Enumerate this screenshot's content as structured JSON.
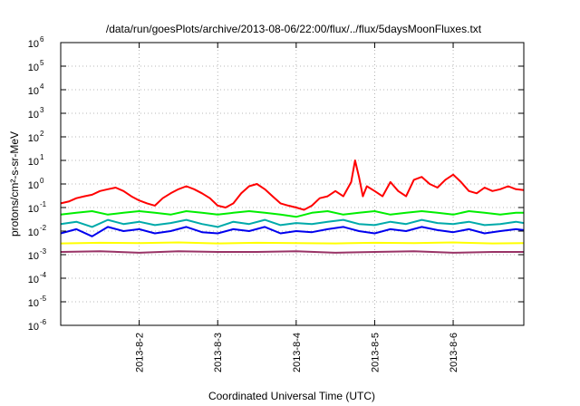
{
  "chart_data": {
    "type": "line",
    "title": "/data/run/goesPlots/archive/2013-08-06/22:00/flux/../flux/5daysMoonFluxes.txt",
    "xlabel": "Coordinated Universal Time (UTC)",
    "ylabel": "protons/cm²-s-sr-MeV",
    "yscale": "log",
    "ylim": [
      1e-06,
      1000000.0
    ],
    "xlim": [
      0,
      5.9
    ],
    "grid": true,
    "legend": false,
    "x_ticks": [
      {
        "value": 1,
        "label": "2013-8-2"
      },
      {
        "value": 2,
        "label": "2013-8-3"
      },
      {
        "value": 3,
        "label": "2013-8-4"
      },
      {
        "value": 4,
        "label": "2013-8-5"
      },
      {
        "value": 5,
        "label": "2013-8-6"
      }
    ],
    "y_ticks": [
      {
        "value": -6,
        "base": "10",
        "exp": "-6"
      },
      {
        "value": -5,
        "base": "10",
        "exp": "-5"
      },
      {
        "value": -4,
        "base": "10",
        "exp": "-4"
      },
      {
        "value": -3,
        "base": "10",
        "exp": "-3"
      },
      {
        "value": -2,
        "base": "10",
        "exp": "-2"
      },
      {
        "value": -1,
        "base": "10",
        "exp": "-1"
      },
      {
        "value": 0,
        "base": "10",
        "exp": "0"
      },
      {
        "value": 1,
        "base": "10",
        "exp": "1"
      },
      {
        "value": 2,
        "base": "10",
        "exp": "2"
      },
      {
        "value": 3,
        "base": "10",
        "exp": "3"
      },
      {
        "value": 4,
        "base": "10",
        "exp": "4"
      },
      {
        "value": 5,
        "base": "10",
        "exp": "5"
      },
      {
        "value": 6,
        "base": "10",
        "exp": "6"
      }
    ],
    "series": [
      {
        "color": "#ff0000",
        "x": [
          0,
          0.1,
          0.2,
          0.3,
          0.4,
          0.5,
          0.6,
          0.7,
          0.8,
          0.9,
          1.0,
          1.1,
          1.2,
          1.3,
          1.4,
          1.5,
          1.6,
          1.7,
          1.8,
          1.9,
          2.0,
          2.1,
          2.2,
          2.3,
          2.4,
          2.5,
          2.6,
          2.7,
          2.8,
          2.9,
          3.0,
          3.1,
          3.2,
          3.3,
          3.4,
          3.5,
          3.6,
          3.7,
          3.75,
          3.8,
          3.85,
          3.9,
          4.0,
          4.1,
          4.2,
          4.3,
          4.4,
          4.5,
          4.6,
          4.7,
          4.8,
          4.9,
          5.0,
          5.1,
          5.2,
          5.3,
          5.4,
          5.5,
          5.6,
          5.7,
          5.8,
          5.9
        ],
        "y": [
          0.15,
          0.18,
          0.25,
          0.3,
          0.35,
          0.5,
          0.6,
          0.7,
          0.5,
          0.3,
          0.2,
          0.15,
          0.12,
          0.25,
          0.4,
          0.6,
          0.8,
          0.6,
          0.4,
          0.25,
          0.12,
          0.1,
          0.15,
          0.4,
          0.8,
          1.0,
          0.6,
          0.3,
          0.15,
          0.12,
          0.1,
          0.08,
          0.12,
          0.25,
          0.3,
          0.5,
          0.3,
          1.2,
          10,
          2.0,
          0.3,
          0.8,
          0.5,
          0.3,
          1.2,
          0.5,
          0.3,
          1.5,
          2.0,
          1.0,
          0.7,
          1.5,
          2.5,
          1.2,
          0.5,
          0.4,
          0.7,
          0.5,
          0.6,
          0.8,
          0.6,
          0.55
        ]
      },
      {
        "color": "#00ee00",
        "x": [
          0,
          0.2,
          0.4,
          0.6,
          0.8,
          1.0,
          1.2,
          1.4,
          1.6,
          1.8,
          2.0,
          2.2,
          2.4,
          2.6,
          2.8,
          3.0,
          3.2,
          3.4,
          3.6,
          3.8,
          4.0,
          4.2,
          4.4,
          4.6,
          4.8,
          5.0,
          5.2,
          5.4,
          5.6,
          5.8,
          5.9
        ],
        "y": [
          0.05,
          0.06,
          0.07,
          0.05,
          0.06,
          0.07,
          0.06,
          0.05,
          0.07,
          0.06,
          0.05,
          0.06,
          0.07,
          0.06,
          0.05,
          0.04,
          0.06,
          0.07,
          0.05,
          0.06,
          0.07,
          0.05,
          0.06,
          0.07,
          0.06,
          0.05,
          0.07,
          0.06,
          0.05,
          0.06,
          0.06
        ]
      },
      {
        "color": "#00aaaa",
        "x": [
          0,
          0.2,
          0.4,
          0.6,
          0.8,
          1.0,
          1.2,
          1.4,
          1.6,
          1.8,
          2.0,
          2.2,
          2.4,
          2.6,
          2.8,
          3.0,
          3.2,
          3.4,
          3.6,
          3.8,
          4.0,
          4.2,
          4.4,
          4.6,
          4.8,
          5.0,
          5.2,
          5.4,
          5.6,
          5.8,
          5.9
        ],
        "y": [
          0.02,
          0.025,
          0.015,
          0.03,
          0.02,
          0.025,
          0.018,
          0.022,
          0.03,
          0.02,
          0.015,
          0.025,
          0.02,
          0.03,
          0.018,
          0.022,
          0.02,
          0.025,
          0.03,
          0.02,
          0.018,
          0.025,
          0.02,
          0.03,
          0.022,
          0.02,
          0.025,
          0.018,
          0.02,
          0.025,
          0.022
        ]
      },
      {
        "color": "#0000ee",
        "x": [
          0,
          0.2,
          0.4,
          0.6,
          0.8,
          1.0,
          1.2,
          1.4,
          1.6,
          1.8,
          2.0,
          2.2,
          2.4,
          2.6,
          2.8,
          3.0,
          3.2,
          3.4,
          3.6,
          3.8,
          4.0,
          4.2,
          4.4,
          4.6,
          4.8,
          5.0,
          5.2,
          5.4,
          5.6,
          5.8,
          5.9
        ],
        "y": [
          0.008,
          0.012,
          0.006,
          0.015,
          0.01,
          0.012,
          0.008,
          0.01,
          0.015,
          0.009,
          0.008,
          0.012,
          0.01,
          0.015,
          0.008,
          0.01,
          0.009,
          0.012,
          0.015,
          0.01,
          0.008,
          0.012,
          0.01,
          0.015,
          0.011,
          0.009,
          0.012,
          0.008,
          0.01,
          0.012,
          0.011
        ]
      },
      {
        "color": "#ffff00",
        "x": [
          0,
          0.5,
          1.0,
          1.5,
          2.0,
          2.5,
          3.0,
          3.5,
          4.0,
          4.5,
          5.0,
          5.5,
          5.9
        ],
        "y": [
          0.003,
          0.0032,
          0.0031,
          0.0033,
          0.003,
          0.0032,
          0.0031,
          0.003,
          0.0032,
          0.0031,
          0.0033,
          0.003,
          0.0031
        ]
      },
      {
        "color": "#993366",
        "x": [
          0,
          0.5,
          1.0,
          1.5,
          2.0,
          2.5,
          3.0,
          3.5,
          4.0,
          4.5,
          5.0,
          5.5,
          5.9
        ],
        "y": [
          0.0013,
          0.0014,
          0.0012,
          0.0014,
          0.0013,
          0.0013,
          0.0014,
          0.0012,
          0.0013,
          0.0014,
          0.0012,
          0.0013,
          0.0013
        ]
      }
    ]
  }
}
